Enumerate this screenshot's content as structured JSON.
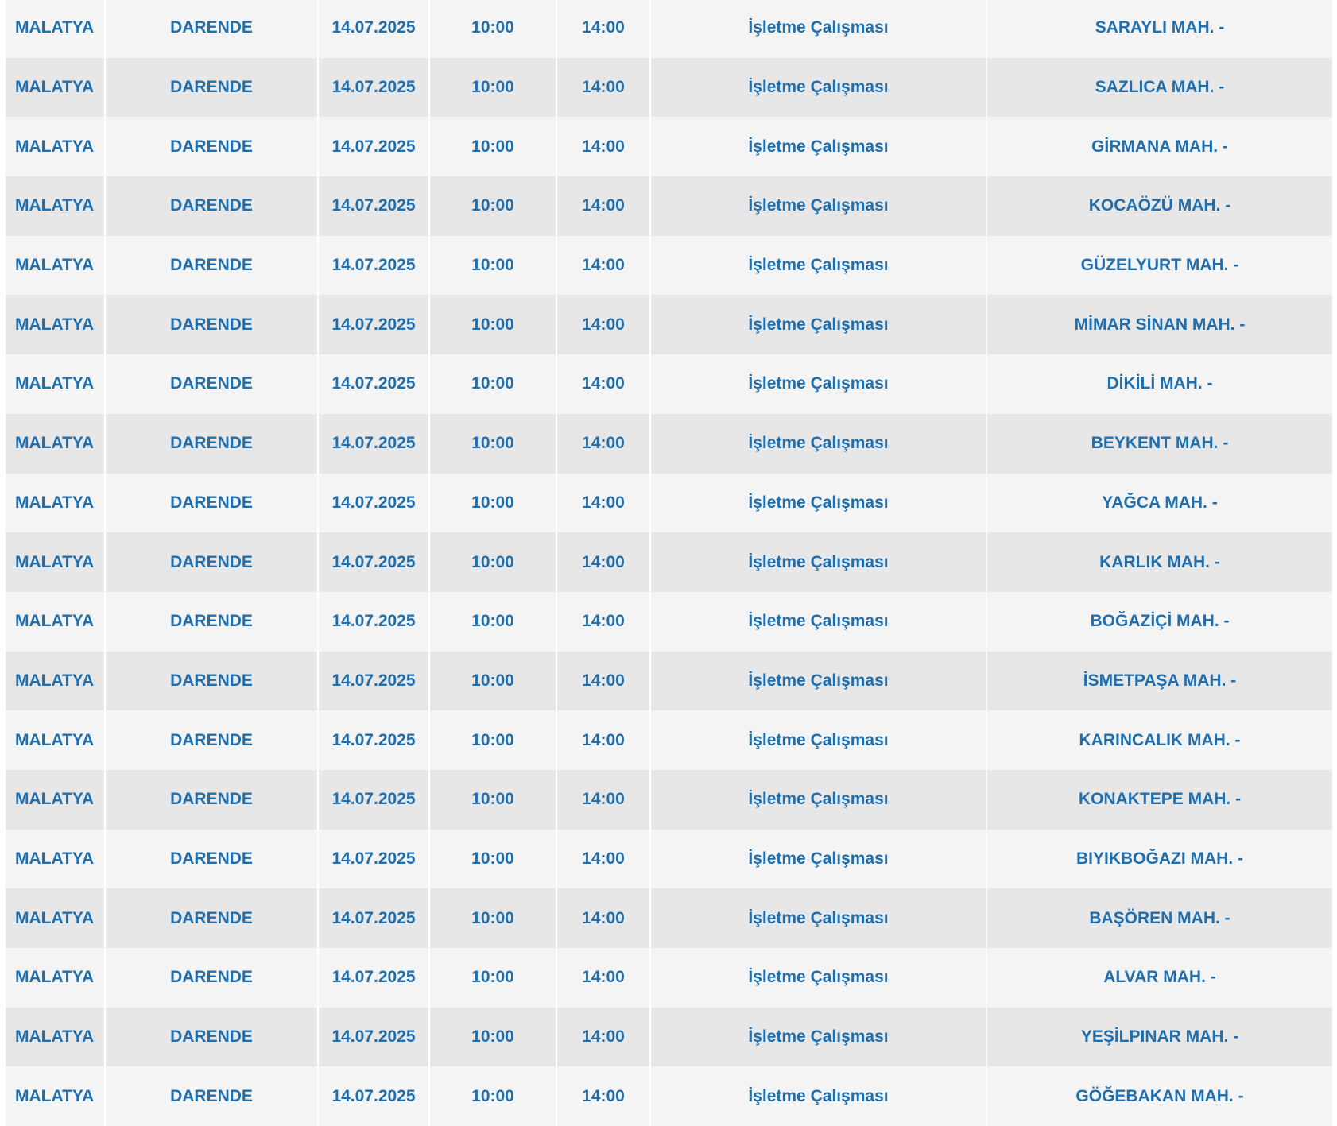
{
  "table": {
    "rows": [
      [
        "MALATYA",
        "DARENDE",
        "14.07.2025",
        "10:00",
        "14:00",
        "İşletme Çalışması",
        "SARAYLI MAH. -"
      ],
      [
        "MALATYA",
        "DARENDE",
        "14.07.2025",
        "10:00",
        "14:00",
        "İşletme Çalışması",
        "SAZLICA MAH. -"
      ],
      [
        "MALATYA",
        "DARENDE",
        "14.07.2025",
        "10:00",
        "14:00",
        "İşletme Çalışması",
        "GİRMANA MAH. -"
      ],
      [
        "MALATYA",
        "DARENDE",
        "14.07.2025",
        "10:00",
        "14:00",
        "İşletme Çalışması",
        "KOCAÖZÜ MAH. -"
      ],
      [
        "MALATYA",
        "DARENDE",
        "14.07.2025",
        "10:00",
        "14:00",
        "İşletme Çalışması",
        "GÜZELYURT MAH. -"
      ],
      [
        "MALATYA",
        "DARENDE",
        "14.07.2025",
        "10:00",
        "14:00",
        "İşletme Çalışması",
        "MİMAR SİNAN MAH. -"
      ],
      [
        "MALATYA",
        "DARENDE",
        "14.07.2025",
        "10:00",
        "14:00",
        "İşletme Çalışması",
        "DİKİLİ MAH. -"
      ],
      [
        "MALATYA",
        "DARENDE",
        "14.07.2025",
        "10:00",
        "14:00",
        "İşletme Çalışması",
        "BEYKENT MAH. -"
      ],
      [
        "MALATYA",
        "DARENDE",
        "14.07.2025",
        "10:00",
        "14:00",
        "İşletme Çalışması",
        "YAĞCA MAH. -"
      ],
      [
        "MALATYA",
        "DARENDE",
        "14.07.2025",
        "10:00",
        "14:00",
        "İşletme Çalışması",
        "KARLIK MAH. -"
      ],
      [
        "MALATYA",
        "DARENDE",
        "14.07.2025",
        "10:00",
        "14:00",
        "İşletme Çalışması",
        "BOĞAZİÇİ MAH. -"
      ],
      [
        "MALATYA",
        "DARENDE",
        "14.07.2025",
        "10:00",
        "14:00",
        "İşletme Çalışması",
        "İSMETPAŞA MAH. -"
      ],
      [
        "MALATYA",
        "DARENDE",
        "14.07.2025",
        "10:00",
        "14:00",
        "İşletme Çalışması",
        "KARINCALIK MAH. -"
      ],
      [
        "MALATYA",
        "DARENDE",
        "14.07.2025",
        "10:00",
        "14:00",
        "İşletme Çalışması",
        "KONAKTEPE MAH. -"
      ],
      [
        "MALATYA",
        "DARENDE",
        "14.07.2025",
        "10:00",
        "14:00",
        "İşletme Çalışması",
        "BIYIKBOĞAZI MAH. -"
      ],
      [
        "MALATYA",
        "DARENDE",
        "14.07.2025",
        "10:00",
        "14:00",
        "İşletme Çalışması",
        "BAŞÖREN MAH. -"
      ],
      [
        "MALATYA",
        "DARENDE",
        "14.07.2025",
        "10:00",
        "14:00",
        "İşletme Çalışması",
        "ALVAR MAH. -"
      ],
      [
        "MALATYA",
        "DARENDE",
        "14.07.2025",
        "10:00",
        "14:00",
        "İşletme Çalışması",
        "YEŞİLPINAR MAH. -"
      ],
      [
        "MALATYA",
        "DARENDE",
        "14.07.2025",
        "10:00",
        "14:00",
        "İşletme Çalışması",
        "GÖĞEBAKAN MAH. -"
      ]
    ]
  }
}
